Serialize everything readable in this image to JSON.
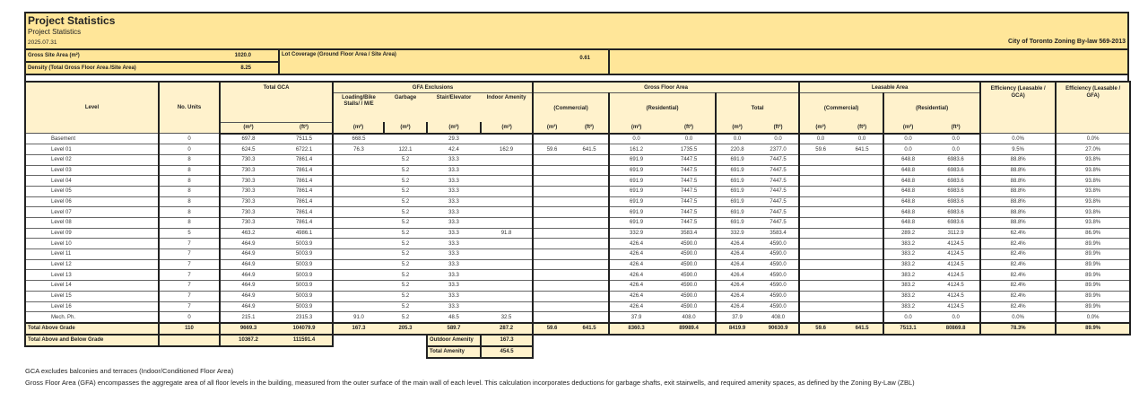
{
  "header": {
    "title": "Project Statistics",
    "subtitle": "Project Statistics",
    "date": "2025.07.31",
    "bylaw": "City of Toronto Zoning By-law 569-2013"
  },
  "site": {
    "gross_site_area_label": "Gross Site Area (m²)",
    "gross_site_area_value": "1020.0",
    "density_label": "Density (Total Gross Floor Area /Site Area)",
    "density_value": "8.25",
    "lot_coverage_label": "Lot Coverage (Ground Floor Area / Site Area)",
    "lot_coverage_value": "0.61"
  },
  "columns": {
    "level": "Level",
    "units": "No. Units",
    "total_gca": "Total GCA",
    "gfa_exclusions": "GFA Exclusions",
    "gross_floor_area": "Gross Floor Area",
    "leasable_area": "Leasable Area",
    "eff_gca": "Efficiency (Leasable / GCA)",
    "eff_gfa": "Efficiency (Leasable / GFA)",
    "loading": "Loading/Bike Stalls/ / M/E",
    "garbage": "Garbage",
    "stair": "Stair/Elevator",
    "indoor_amenity": "Indoor Amenity",
    "commercial": "(Commercial)",
    "residential": "(Residential)",
    "total": "Total",
    "lease_commercial": "(Commercial)",
    "lease_residential": "(Residential)",
    "units_row": [
      "(m²)",
      "(ft²)",
      "(m²)",
      "(m²)",
      "(m²)",
      "(m²)",
      "(m²)",
      "(ft²)",
      "(m²)",
      "(ft²)",
      "(m²)",
      "(ft²)",
      "(m²)",
      "(ft²)",
      "(m²)",
      "(ft²)"
    ]
  },
  "rows": [
    [
      "Basement",
      "0",
      "697.8",
      "7511.5",
      "668.5",
      "",
      "29.3",
      "",
      "",
      "",
      "0.0",
      "0.0",
      "0.0",
      "0.0",
      "0.0",
      "0.0",
      "0.0",
      "0.0",
      "0.0%",
      "0.0%"
    ],
    [
      "Level 01",
      "0",
      "624.5",
      "6722.1",
      "76.3",
      "122.1",
      "42.4",
      "162.9",
      "59.6",
      "641.5",
      "161.2",
      "1735.5",
      "220.8",
      "2377.0",
      "59.6",
      "641.5",
      "0.0",
      "0.0",
      "9.5%",
      "27.0%"
    ],
    [
      "Level 02",
      "8",
      "730.3",
      "7861.4",
      "",
      "5.2",
      "33.3",
      "",
      "",
      "",
      "691.9",
      "7447.5",
      "691.9",
      "7447.5",
      "",
      "",
      "648.8",
      "6983.6",
      "88.8%",
      "93.8%"
    ],
    [
      "Level 03",
      "8",
      "730.3",
      "7861.4",
      "",
      "5.2",
      "33.3",
      "",
      "",
      "",
      "691.9",
      "7447.5",
      "691.9",
      "7447.5",
      "",
      "",
      "648.8",
      "6983.6",
      "88.8%",
      "93.8%"
    ],
    [
      "Level 04",
      "8",
      "730.3",
      "7861.4",
      "",
      "5.2",
      "33.3",
      "",
      "",
      "",
      "691.9",
      "7447.5",
      "691.9",
      "7447.5",
      "",
      "",
      "648.8",
      "6983.6",
      "88.8%",
      "93.8%"
    ],
    [
      "Level 05",
      "8",
      "730.3",
      "7861.4",
      "",
      "5.2",
      "33.3",
      "",
      "",
      "",
      "691.9",
      "7447.5",
      "691.9",
      "7447.5",
      "",
      "",
      "648.8",
      "6983.6",
      "88.8%",
      "93.8%"
    ],
    [
      "Level 06",
      "8",
      "730.3",
      "7861.4",
      "",
      "5.2",
      "33.3",
      "",
      "",
      "",
      "691.9",
      "7447.5",
      "691.9",
      "7447.5",
      "",
      "",
      "648.8",
      "6983.6",
      "88.8%",
      "93.8%"
    ],
    [
      "Level 07",
      "8",
      "730.3",
      "7861.4",
      "",
      "5.2",
      "33.3",
      "",
      "",
      "",
      "691.9",
      "7447.5",
      "691.9",
      "7447.5",
      "",
      "",
      "648.8",
      "6983.6",
      "88.8%",
      "93.8%"
    ],
    [
      "Level 08",
      "8",
      "730.3",
      "7861.4",
      "",
      "5.2",
      "33.3",
      "",
      "",
      "",
      "691.9",
      "7447.5",
      "691.9",
      "7447.5",
      "",
      "",
      "648.8",
      "6983.6",
      "88.8%",
      "93.8%"
    ],
    [
      "Level 09",
      "5",
      "463.2",
      "4986.1",
      "",
      "5.2",
      "33.3",
      "91.8",
      "",
      "",
      "332.9",
      "3583.4",
      "332.9",
      "3583.4",
      "",
      "",
      "289.2",
      "3112.9",
      "62.4%",
      "86.9%"
    ],
    [
      "Level 10",
      "7",
      "464.9",
      "5003.9",
      "",
      "5.2",
      "33.3",
      "",
      "",
      "",
      "426.4",
      "4590.0",
      "426.4",
      "4590.0",
      "",
      "",
      "383.2",
      "4124.5",
      "82.4%",
      "89.9%"
    ],
    [
      "Level 11",
      "7",
      "464.9",
      "5003.9",
      "",
      "5.2",
      "33.3",
      "",
      "",
      "",
      "426.4",
      "4590.0",
      "426.4",
      "4590.0",
      "",
      "",
      "383.2",
      "4124.5",
      "82.4%",
      "89.9%"
    ],
    [
      "Level 12",
      "7",
      "464.9",
      "5003.9",
      "",
      "5.2",
      "33.3",
      "",
      "",
      "",
      "426.4",
      "4590.0",
      "426.4",
      "4590.0",
      "",
      "",
      "383.2",
      "4124.5",
      "82.4%",
      "89.9%"
    ],
    [
      "Level 13",
      "7",
      "464.9",
      "5003.9",
      "",
      "5.2",
      "33.3",
      "",
      "",
      "",
      "426.4",
      "4590.0",
      "426.4",
      "4590.0",
      "",
      "",
      "383.2",
      "4124.5",
      "82.4%",
      "89.9%"
    ],
    [
      "Level 14",
      "7",
      "464.9",
      "5003.9",
      "",
      "5.2",
      "33.3",
      "",
      "",
      "",
      "426.4",
      "4590.0",
      "426.4",
      "4590.0",
      "",
      "",
      "383.2",
      "4124.5",
      "82.4%",
      "89.9%"
    ],
    [
      "Level 15",
      "7",
      "464.9",
      "5003.9",
      "",
      "5.2",
      "33.3",
      "",
      "",
      "",
      "426.4",
      "4590.0",
      "426.4",
      "4590.0",
      "",
      "",
      "383.2",
      "4124.5",
      "82.4%",
      "89.9%"
    ],
    [
      "Level 16",
      "7",
      "464.9",
      "5003.9",
      "",
      "5.2",
      "33.3",
      "",
      "",
      "",
      "426.4",
      "4590.0",
      "426.4",
      "4590.0",
      "",
      "",
      "383.2",
      "4124.5",
      "82.4%",
      "89.9%"
    ],
    [
      "Mech. Ph.",
      "0",
      "215.1",
      "2315.3",
      "91.0",
      "5.2",
      "48.5",
      "32.5",
      "",
      "",
      "37.9",
      "408.0",
      "37.9",
      "408.0",
      "",
      "",
      "0.0",
      "0.0",
      "0.0%",
      "0.0%"
    ]
  ],
  "total_above_grade": [
    "Total Above Grade",
    "110",
    "9669.3",
    "104079.9",
    "167.3",
    "205.3",
    "589.7",
    "287.2",
    "59.6",
    "641.5",
    "8360.3",
    "89989.4",
    "8419.9",
    "90630.9",
    "59.6",
    "641.5",
    "7513.1",
    "80869.8",
    "78.3%",
    "89.9%"
  ],
  "total_above_below": {
    "label": "Total Above and Below Grade",
    "gca_m2": "10367.2",
    "gca_ft2": "111591.4",
    "outdoor_amenity_label": "Outdoor Amenity",
    "outdoor_amenity_value": "167.3",
    "total_amenity_label": "Total Amenity",
    "total_amenity_value": "454.5"
  },
  "notes": [
    "GCA excludes balconies and terraces (Indoor/Conditioned Floor Area)",
    "Gross Floor Area (GFA) encompasses the aggregate area of all floor levels in the building, measured from the outer surface of the main wall of each level. This calculation incorporates deductions for garbage shafts, exit stairwells, and required amenity spaces, as defined by the Zoning By-Law (ZBL)"
  ],
  "colors": {
    "title_bg": "#ffe699",
    "header_bg": "#fff2cc",
    "border": "#222222"
  }
}
